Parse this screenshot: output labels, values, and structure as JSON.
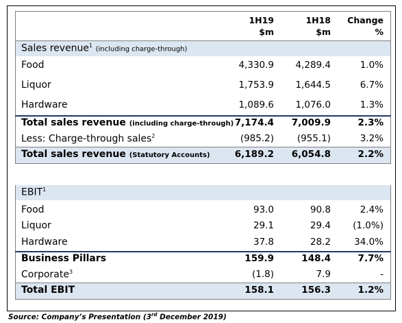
{
  "header": {
    "columns": [
      {
        "line1": "1H19",
        "line2": "$m"
      },
      {
        "line1": "1H18",
        "line2": "$m"
      },
      {
        "line1": "Change",
        "line2": "%"
      }
    ]
  },
  "sales": {
    "title": {
      "label": "Sales revenue",
      "sup": "1",
      "note": "(including charge-through)"
    },
    "rows": [
      {
        "label": "Food",
        "values": [
          "4,330.9",
          "4,289.4",
          "1.0%"
        ]
      },
      {
        "label": "Liquor",
        "values": [
          "1,753.9",
          "1,644.5",
          "6.7%"
        ]
      },
      {
        "label": "Hardware",
        "values": [
          "1,089.6",
          "1,076.0",
          "1.3%"
        ]
      },
      {
        "label": "Total sales revenue",
        "note": "(including charge-through)",
        "values": [
          "7,174.4",
          "7,009.9",
          "2.3%"
        ]
      },
      {
        "label": "Less: Charge-through sales",
        "sup": "2",
        "values": [
          "(985.2)",
          "(955.1)",
          "3.2%"
        ]
      },
      {
        "label": "Total sales revenue",
        "note": "(Statutory Accounts)",
        "values": [
          "6,189.2",
          "6,054.8",
          "2.2%"
        ]
      }
    ]
  },
  "ebit": {
    "title": {
      "label": "EBIT",
      "sup": "1"
    },
    "rows": [
      {
        "label": "Food",
        "values": [
          "93.0",
          "90.8",
          "2.4%"
        ]
      },
      {
        "label": "Liquor",
        "values": [
          "29.1",
          "29.4",
          "(1.0%)"
        ]
      },
      {
        "label": "Hardware",
        "values": [
          "37.8",
          "28.2",
          "34.0%"
        ]
      },
      {
        "label": "Business Pillars",
        "values": [
          "159.9",
          "148.4",
          "7.7%"
        ]
      },
      {
        "label": "Corporate",
        "sup": "3",
        "values": [
          "(1.8)",
          "7.9",
          "-"
        ]
      },
      {
        "label": "Total EBIT",
        "values": [
          "158.1",
          "156.3",
          "1.2%"
        ]
      }
    ]
  },
  "source": {
    "text": "Source: Company’s Presentation (3",
    "sup": "rd",
    "rest": " December 2019)"
  }
}
